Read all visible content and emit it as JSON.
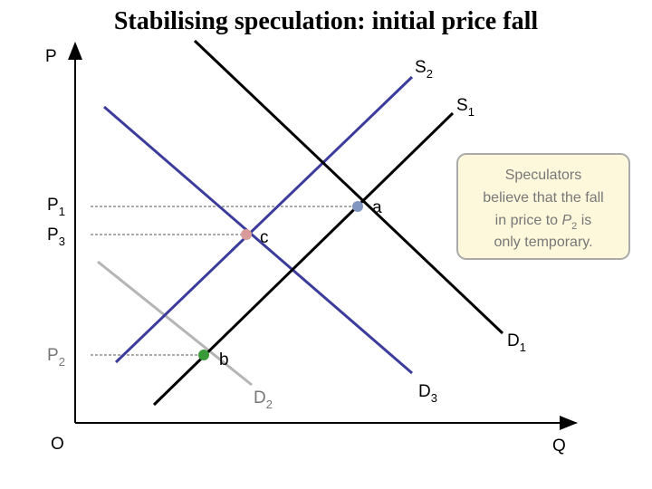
{
  "title": "Stabilising speculation: initial price fall",
  "axes": {
    "y": "P",
    "x": "Q",
    "origin": "O"
  },
  "curves": {
    "s2": {
      "symbol": "S",
      "sub": "2"
    },
    "s1": {
      "symbol": "S",
      "sub": "1"
    },
    "d1": {
      "symbol": "D",
      "sub": "1"
    },
    "d2": {
      "symbol": "D",
      "sub": "2"
    },
    "d3": {
      "symbol": "D",
      "sub": "3"
    }
  },
  "prices": {
    "p1": {
      "symbol": "P",
      "sub": "1"
    },
    "p3": {
      "symbol": "P",
      "sub": "3"
    },
    "p2": {
      "symbol": "P",
      "sub": "2"
    }
  },
  "points": {
    "a": "a",
    "b": "b",
    "c": "c"
  },
  "callout": {
    "line1": "Speculators",
    "line2": "believe that the fall",
    "line3_start": "in price to",
    "line3_symbol": "P",
    "line3_sub": "2",
    "line3_end": "is",
    "line4": "only temporary."
  }
}
